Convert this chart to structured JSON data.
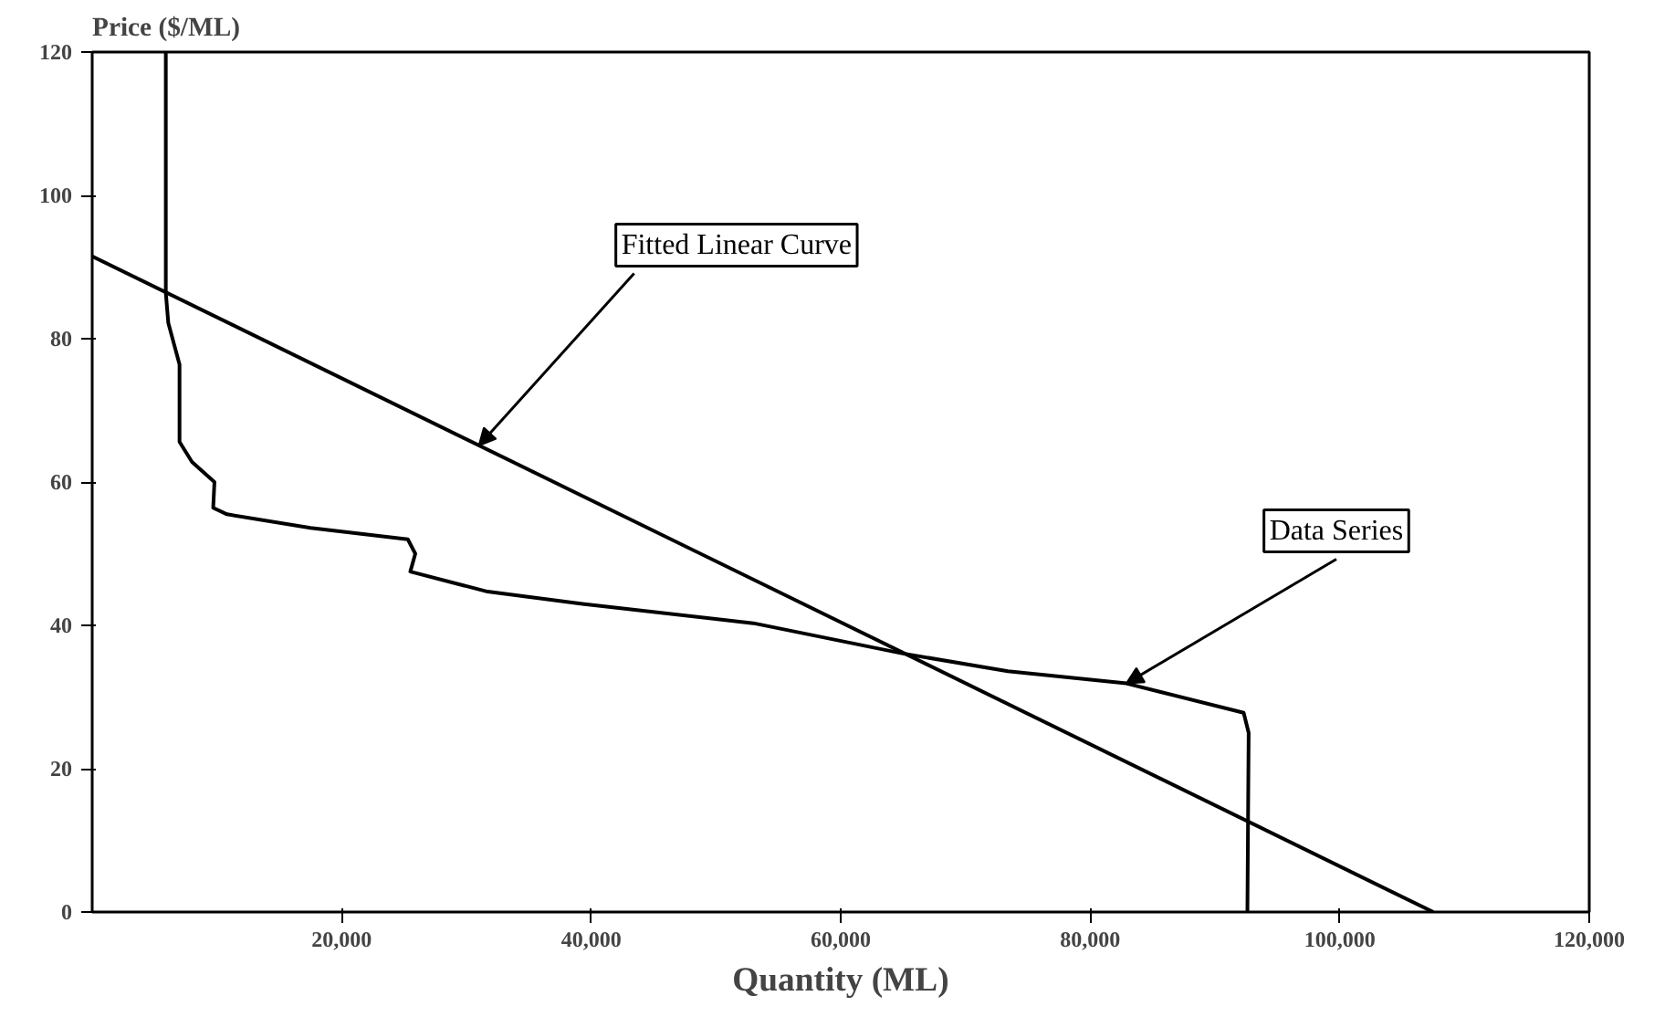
{
  "chart_data": {
    "type": "line",
    "xlabel": "Quantity (ML)",
    "ylabel": "Price ($/ML)",
    "xlim": [
      0,
      120000
    ],
    "ylim": [
      0,
      120
    ],
    "xticks": [
      {
        "value": 20000,
        "label": "20,000"
      },
      {
        "value": 40000,
        "label": "40,000"
      },
      {
        "value": 60000,
        "label": "60,000"
      },
      {
        "value": 80000,
        "label": "80,000"
      },
      {
        "value": 100000,
        "label": "100,000"
      },
      {
        "value": 120000,
        "label": "120,000"
      }
    ],
    "yticks": [
      0,
      20,
      40,
      60,
      80,
      100,
      120
    ],
    "grid": false,
    "marker": "none",
    "line_style": "solid",
    "series": [
      {
        "color": "#000000",
        "x": [
          5900,
          5900,
          6100,
          7000,
          7000,
          8000,
          9800,
          9700,
          10800,
          17500,
          25300,
          25900,
          25500,
          31700,
          39300,
          53000,
          64900,
          73400,
          82900,
          92300,
          92700,
          92600
        ],
        "values": [
          120,
          86.4,
          82.2,
          76.4,
          65.6,
          62.8,
          60,
          56.4,
          55.5,
          53.6,
          52,
          50,
          47.5,
          44.7,
          43,
          40.3,
          36.1,
          33.6,
          31.9,
          27.8,
          25,
          0
        ]
      },
      {
        "type": "line",
        "color": "#000000",
        "x": [
          0,
          107500
        ],
        "values": [
          91.5,
          0
        ]
      }
    ],
    "annotations": [
      {
        "text": "Fitted Linear Curve",
        "x": 31000,
        "y": 65.1
      },
      {
        "text": "Data Series",
        "x": 82900,
        "y": 31.9
      }
    ]
  }
}
